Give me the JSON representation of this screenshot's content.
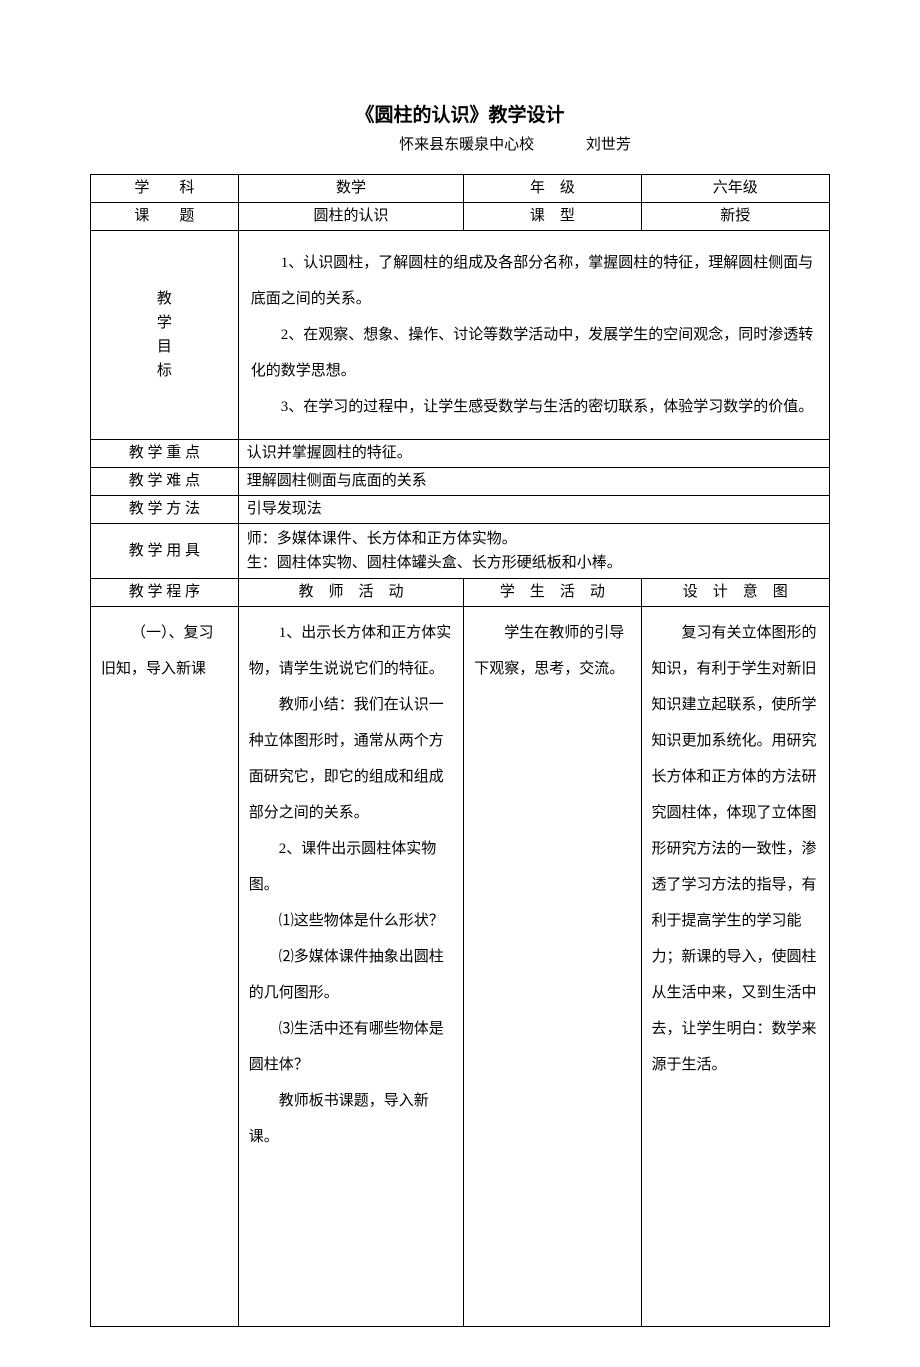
{
  "title": "《圆柱的认识》教学设计",
  "subtitle": {
    "school": "怀来县东暖泉中心校",
    "author": "刘世芳"
  },
  "headerRows": {
    "subjectLabel": "学　　科",
    "subjectValue": "数学",
    "gradeLabel": "年　级",
    "gradeValue": "六年级",
    "topicLabel": "课　　题",
    "topicValue": "圆柱的认识",
    "classTypeLabel": "课　型",
    "classTypeValue": "新授"
  },
  "goals": {
    "label": "教\n学\n目\n标",
    "p1": "1、认识圆柱，了解圆柱的组成及各部分名称，掌握圆柱的特征，理解圆柱侧面与底面之间的关系。",
    "p2": "2、在观察、想象、操作、讨论等数学活动中，发展学生的空间观念，同时渗透转化的数学思想。",
    "p3": "3、在学习的过程中，让学生感受数学与生活的密切联系，体验学习数学的价值。"
  },
  "keypoint": {
    "label": "教 学 重 点",
    "value": "认识并掌握圆柱的特征。"
  },
  "difficulty": {
    "label": "教 学 难 点",
    "value": "理解圆柱侧面与底面的关系"
  },
  "method": {
    "label": "教 学 方 法",
    "value": "引导发现法"
  },
  "tools": {
    "label": "教 学 用 具",
    "line1": "师：多媒体课件、长方体和正方体实物。",
    "line2": "生：圆柱体实物、圆柱体罐头盒、长方形硬纸板和小棒。"
  },
  "programHeader": {
    "program": "教 学 程 序",
    "teacher": "教　师　活　动",
    "student": "学　生　活　动",
    "intent": "设　计　意　图"
  },
  "section": {
    "name": "（一）、复习旧知，导入新课",
    "teacher": {
      "p1": "1、出示长方体和正方体实物，请学生说说它们的特征。",
      "p2": "教师小结：我们在认识一种立体图形时，通常从两个方面研究它，即它的组成和组成部分之间的关系。",
      "p3": "2、课件出示圆柱体实物图。",
      "p4": "⑴这些物体是什么形状？",
      "p5": "⑵多媒体课件抽象出圆柱的几何图形。",
      "p6": "⑶生活中还有哪些物体是圆柱体？",
      "p7": "教师板书课题，导入新课。"
    },
    "student": {
      "p1": "学生在教师的引导下观察，思考，交流。"
    },
    "intent": {
      "p1": "复习有关立体图形的知识，有利于学生对新旧知识建立起联系，使所学知识更加系统化。用研究长方体和正方体的方法研究圆柱体，体现了立体图形研究方法的一致性，渗透了学习方法的指导，有利于提高学生的学习能力；新课的导入，使圆柱从生活中来，又到生活中去，让学生明白：数学来源于生活。"
    }
  },
  "style": {
    "textColor": "#000000",
    "bgColor": "#ffffff",
    "borderColor": "#000000",
    "bodyFontSize": 15,
    "titleFontSize": 19,
    "lineHeightBody": 2.4,
    "colWidths": [
      "20%",
      "30.5%",
      "24%",
      "25.5%"
    ]
  }
}
